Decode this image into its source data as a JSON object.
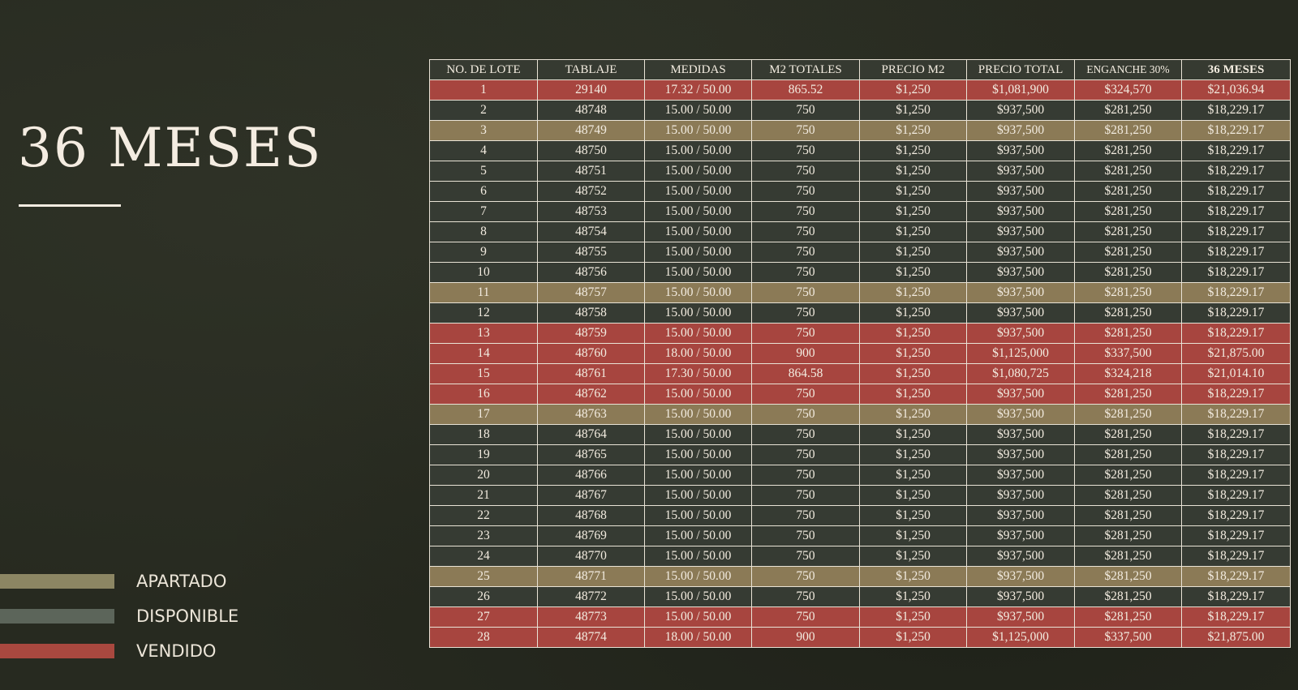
{
  "title": "36 MESES",
  "colors": {
    "background": "#272a20",
    "title_text": "#f4ece1",
    "apartado": "#8b7a56",
    "disponible": "#363b33",
    "vendido": "#a7453f",
    "grid_lines": "#e9e3d6",
    "legend_apartado_swatch": "#8c8663",
    "legend_disponible_swatch": "#5c655a",
    "legend_vendido_swatch": "#a9483f"
  },
  "legend": [
    {
      "label": "APARTADO",
      "status": "apartado"
    },
    {
      "label": "DISPONIBLE",
      "status": "disponible"
    },
    {
      "label": "VENDIDO",
      "status": "vendido"
    }
  ],
  "table": {
    "headers": [
      "NO. DE LOTE",
      "TABLAJE",
      "MEDIDAS",
      "M2 TOTALES",
      "PRECIO M2",
      "PRECIO TOTAL",
      "ENGANCHE 30%",
      "36 MESES"
    ],
    "rows": [
      {
        "status": "vendido",
        "cells": [
          "1",
          "29140",
          "17.32 / 50.00",
          "865.52",
          "$1,250",
          "$1,081,900",
          "$324,570",
          "$21,036.94"
        ]
      },
      {
        "status": "disponible",
        "cells": [
          "2",
          "48748",
          "15.00 / 50.00",
          "750",
          "$1,250",
          "$937,500",
          "$281,250",
          "$18,229.17"
        ]
      },
      {
        "status": "apartado",
        "cells": [
          "3",
          "48749",
          "15.00 / 50.00",
          "750",
          "$1,250",
          "$937,500",
          "$281,250",
          "$18,229.17"
        ]
      },
      {
        "status": "disponible",
        "cells": [
          "4",
          "48750",
          "15.00 / 50.00",
          "750",
          "$1,250",
          "$937,500",
          "$281,250",
          "$18,229.17"
        ]
      },
      {
        "status": "disponible",
        "cells": [
          "5",
          "48751",
          "15.00 / 50.00",
          "750",
          "$1,250",
          "$937,500",
          "$281,250",
          "$18,229.17"
        ]
      },
      {
        "status": "disponible",
        "cells": [
          "6",
          "48752",
          "15.00 / 50.00",
          "750",
          "$1,250",
          "$937,500",
          "$281,250",
          "$18,229.17"
        ]
      },
      {
        "status": "disponible",
        "cells": [
          "7",
          "48753",
          "15.00 / 50.00",
          "750",
          "$1,250",
          "$937,500",
          "$281,250",
          "$18,229.17"
        ]
      },
      {
        "status": "disponible",
        "cells": [
          "8",
          "48754",
          "15.00 / 50.00",
          "750",
          "$1,250",
          "$937,500",
          "$281,250",
          "$18,229.17"
        ]
      },
      {
        "status": "disponible",
        "cells": [
          "9",
          "48755",
          "15.00 / 50.00",
          "750",
          "$1,250",
          "$937,500",
          "$281,250",
          "$18,229.17"
        ]
      },
      {
        "status": "disponible",
        "cells": [
          "10",
          "48756",
          "15.00 / 50.00",
          "750",
          "$1,250",
          "$937,500",
          "$281,250",
          "$18,229.17"
        ]
      },
      {
        "status": "apartado",
        "cells": [
          "11",
          "48757",
          "15.00 / 50.00",
          "750",
          "$1,250",
          "$937,500",
          "$281,250",
          "$18,229.17"
        ]
      },
      {
        "status": "disponible",
        "cells": [
          "12",
          "48758",
          "15.00 / 50.00",
          "750",
          "$1,250",
          "$937,500",
          "$281,250",
          "$18,229.17"
        ]
      },
      {
        "status": "vendido",
        "cells": [
          "13",
          "48759",
          "15.00 / 50.00",
          "750",
          "$1,250",
          "$937,500",
          "$281,250",
          "$18,229.17"
        ]
      },
      {
        "status": "vendido",
        "cells": [
          "14",
          "48760",
          "18.00 / 50.00",
          "900",
          "$1,250",
          "$1,125,000",
          "$337,500",
          "$21,875.00"
        ]
      },
      {
        "status": "vendido",
        "cells": [
          "15",
          "48761",
          "17.30 / 50.00",
          "864.58",
          "$1,250",
          "$1,080,725",
          "$324,218",
          "$21,014.10"
        ]
      },
      {
        "status": "vendido",
        "cells": [
          "16",
          "48762",
          "15.00 / 50.00",
          "750",
          "$1,250",
          "$937,500",
          "$281,250",
          "$18,229.17"
        ]
      },
      {
        "status": "apartado",
        "cells": [
          "17",
          "48763",
          "15.00 / 50.00",
          "750",
          "$1,250",
          "$937,500",
          "$281,250",
          "$18,229.17"
        ]
      },
      {
        "status": "disponible",
        "cells": [
          "18",
          "48764",
          "15.00 / 50.00",
          "750",
          "$1,250",
          "$937,500",
          "$281,250",
          "$18,229.17"
        ]
      },
      {
        "status": "disponible",
        "cells": [
          "19",
          "48765",
          "15.00 / 50.00",
          "750",
          "$1,250",
          "$937,500",
          "$281,250",
          "$18,229.17"
        ]
      },
      {
        "status": "disponible",
        "cells": [
          "20",
          "48766",
          "15.00 / 50.00",
          "750",
          "$1,250",
          "$937,500",
          "$281,250",
          "$18,229.17"
        ]
      },
      {
        "status": "disponible",
        "cells": [
          "21",
          "48767",
          "15.00 / 50.00",
          "750",
          "$1,250",
          "$937,500",
          "$281,250",
          "$18,229.17"
        ]
      },
      {
        "status": "disponible",
        "cells": [
          "22",
          "48768",
          "15.00 / 50.00",
          "750",
          "$1,250",
          "$937,500",
          "$281,250",
          "$18,229.17"
        ]
      },
      {
        "status": "disponible",
        "cells": [
          "23",
          "48769",
          "15.00 / 50.00",
          "750",
          "$1,250",
          "$937,500",
          "$281,250",
          "$18,229.17"
        ]
      },
      {
        "status": "disponible",
        "cells": [
          "24",
          "48770",
          "15.00 / 50.00",
          "750",
          "$1,250",
          "$937,500",
          "$281,250",
          "$18,229.17"
        ]
      },
      {
        "status": "apartado",
        "cells": [
          "25",
          "48771",
          "15.00 / 50.00",
          "750",
          "$1,250",
          "$937,500",
          "$281,250",
          "$18,229.17"
        ]
      },
      {
        "status": "disponible",
        "cells": [
          "26",
          "48772",
          "15.00 / 50.00",
          "750",
          "$1,250",
          "$937,500",
          "$281,250",
          "$18,229.17"
        ]
      },
      {
        "status": "vendido",
        "cells": [
          "27",
          "48773",
          "15.00 / 50.00",
          "750",
          "$1,250",
          "$937,500",
          "$281,250",
          "$18,229.17"
        ]
      },
      {
        "status": "vendido",
        "cells": [
          "28",
          "48774",
          "18.00 / 50.00",
          "900",
          "$1,250",
          "$1,125,000",
          "$337,500",
          "$21,875.00"
        ]
      }
    ]
  }
}
